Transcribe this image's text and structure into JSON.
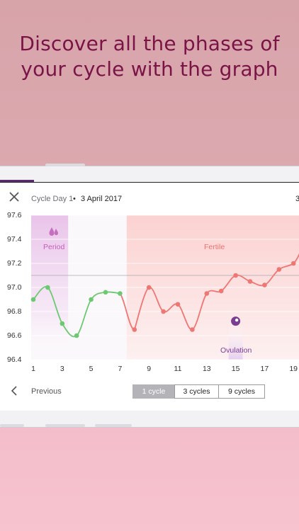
{
  "headline": [
    "Discover all the phases of",
    "your cycle with the graph"
  ],
  "header": {
    "cycle_label": "Cycle Day 1",
    "separator": "•",
    "date": "3 April 2017",
    "edge_number": "3"
  },
  "phases": {
    "period_label": "Period",
    "fertile_label": "Fertile",
    "ovulation_label": "Ovulation"
  },
  "footer": {
    "previous_label": "Previous",
    "segments": [
      "1 cycle",
      "3 cycles",
      "9 cycles"
    ],
    "selected_segment": "1 cycle"
  },
  "colors": {
    "headline": "#7a1447",
    "period": "#c66fbf",
    "fertile": "#e8736f",
    "ovulation": "#7b3c92",
    "green_line": "#6cc972",
    "red_line": "#ef7773"
  },
  "chart_data": {
    "type": "line",
    "x_ticks": [
      "1",
      "3",
      "5",
      "7",
      "9",
      "11",
      "13",
      "15",
      "17",
      "19"
    ],
    "y_ticks": [
      "97.6",
      "97.4",
      "97.2",
      "97.0",
      "96.8",
      "96.6",
      "96.4"
    ],
    "ylim": [
      96.4,
      97.6
    ],
    "xlim": [
      1,
      19.5
    ],
    "reference_line": 97.1,
    "period_days": [
      1,
      4
    ],
    "fertile_days_start": 8,
    "ovulation_day": 15,
    "series": [
      {
        "x": [
          1,
          2,
          3,
          4,
          5,
          6,
          7
        ],
        "y": [
          96.9,
          97.0,
          96.7,
          96.6,
          96.9,
          96.96,
          96.95
        ],
        "color": "#6cc972"
      },
      {
        "x": [
          8,
          9,
          10,
          11,
          12,
          13,
          14,
          15,
          16,
          17,
          18,
          19,
          19.5
        ],
        "y": [
          96.65,
          97.0,
          96.8,
          96.86,
          96.65,
          96.95,
          96.97,
          97.1,
          97.05,
          97.02,
          97.15,
          97.2,
          97.3
        ],
        "color": "#ef7773"
      }
    ]
  }
}
